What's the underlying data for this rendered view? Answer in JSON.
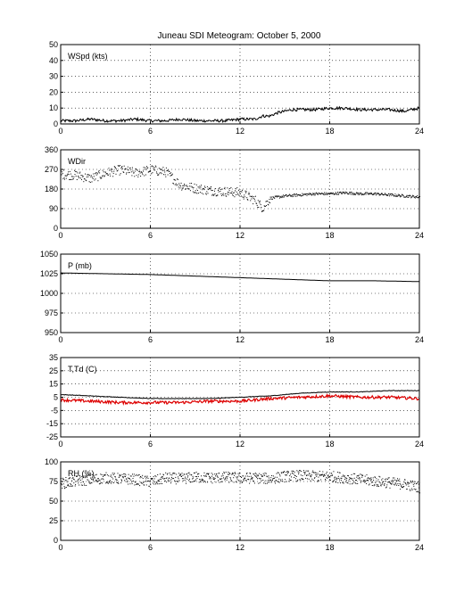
{
  "title": "Juneau SDI Meteogram:    October  5, 2000",
  "colors": {
    "primary": "#000000",
    "secondary": "#dd0000",
    "grid": "#000000"
  },
  "chart_data": [
    {
      "type": "line",
      "label": "WSpd (kts)",
      "xlim": [
        0,
        24
      ],
      "xticks": [
        0,
        6,
        12,
        18,
        24
      ],
      "ylim": [
        0,
        50
      ],
      "yticks": [
        0,
        10,
        20,
        30,
        40,
        50
      ],
      "grid": true,
      "series": [
        {
          "color": "#000000",
          "x": [
            0,
            1,
            2,
            3,
            4,
            5,
            6,
            7,
            8,
            9,
            10,
            11,
            12,
            13,
            13.5,
            14,
            14.5,
            15,
            15.5,
            16,
            17,
            18,
            19,
            20,
            21,
            22,
            23,
            24
          ],
          "y": [
            2,
            2,
            3,
            2,
            2,
            3,
            2,
            2,
            3,
            2,
            2,
            2,
            3,
            3,
            5,
            5,
            7,
            8,
            9,
            9,
            9,
            10,
            10,
            9,
            9,
            9,
            8,
            10
          ]
        }
      ]
    },
    {
      "type": "scatter",
      "label": "WDir",
      "xlim": [
        0,
        24
      ],
      "xticks": [
        0,
        6,
        12,
        18,
        24
      ],
      "ylim": [
        0,
        360
      ],
      "yticks": [
        0,
        90,
        180,
        270,
        360
      ],
      "grid": true,
      "series": [
        {
          "color": "#000000",
          "x": [
            0,
            1,
            2,
            3,
            4,
            5,
            6,
            7,
            8,
            9,
            10,
            11,
            12,
            13,
            13.5,
            14,
            15,
            16,
            17,
            18,
            19,
            20,
            21,
            22,
            23,
            24
          ],
          "y": [
            250,
            245,
            230,
            255,
            270,
            255,
            270,
            260,
            200,
            185,
            175,
            170,
            165,
            130,
            95,
            140,
            150,
            155,
            160,
            160,
            165,
            160,
            160,
            155,
            150,
            145
          ]
        }
      ]
    },
    {
      "type": "line",
      "label": "P (mb)",
      "xlim": [
        0,
        24
      ],
      "xticks": [
        0,
        6,
        12,
        18,
        24
      ],
      "ylim": [
        950,
        1050
      ],
      "yticks": [
        950,
        975,
        1000,
        1025,
        1050
      ],
      "grid": true,
      "series": [
        {
          "color": "#000000",
          "x": [
            0,
            3,
            6,
            9,
            12,
            15,
            18,
            21,
            24
          ],
          "y": [
            1026,
            1025,
            1024,
            1022,
            1020,
            1018,
            1016,
            1016,
            1015
          ]
        }
      ]
    },
    {
      "type": "line",
      "label": "T,Td (C)",
      "xlim": [
        0,
        24
      ],
      "xticks": [
        0,
        6,
        12,
        18,
        24
      ],
      "ylim": [
        -25,
        35
      ],
      "yticks": [
        -25,
        -15,
        -5,
        5,
        15,
        25,
        35
      ],
      "grid": true,
      "series": [
        {
          "color": "#000000",
          "x": [
            0,
            2,
            4,
            6,
            8,
            10,
            12,
            14,
            16,
            18,
            20,
            22,
            24
          ],
          "y": [
            7,
            6,
            5,
            4,
            4,
            4,
            5,
            6,
            8,
            9,
            9,
            10,
            10
          ]
        },
        {
          "color": "#dd0000",
          "x": [
            0,
            2,
            4,
            6,
            8,
            10,
            12,
            14,
            16,
            18,
            20,
            22,
            24
          ],
          "y": [
            3,
            2,
            1,
            1,
            1,
            2,
            2,
            4,
            5,
            6,
            5,
            5,
            4
          ]
        }
      ]
    },
    {
      "type": "scatter",
      "label": "RH (%)",
      "xlim": [
        0,
        24
      ],
      "xticks": [
        0,
        6,
        12,
        18,
        24
      ],
      "ylim": [
        0,
        100
      ],
      "yticks": [
        0,
        25,
        50,
        75,
        100
      ],
      "grid": true,
      "series": [
        {
          "color": "#000000",
          "x": [
            0,
            1,
            2,
            3,
            4,
            5,
            6,
            7,
            8,
            9,
            10,
            11,
            12,
            13,
            14,
            15,
            16,
            17,
            18,
            19,
            20,
            21,
            22,
            23,
            24
          ],
          "y": [
            73,
            76,
            78,
            80,
            79,
            78,
            75,
            80,
            79,
            81,
            80,
            81,
            80,
            80,
            79,
            82,
            83,
            82,
            82,
            80,
            78,
            76,
            74,
            72,
            68
          ]
        }
      ]
    }
  ]
}
